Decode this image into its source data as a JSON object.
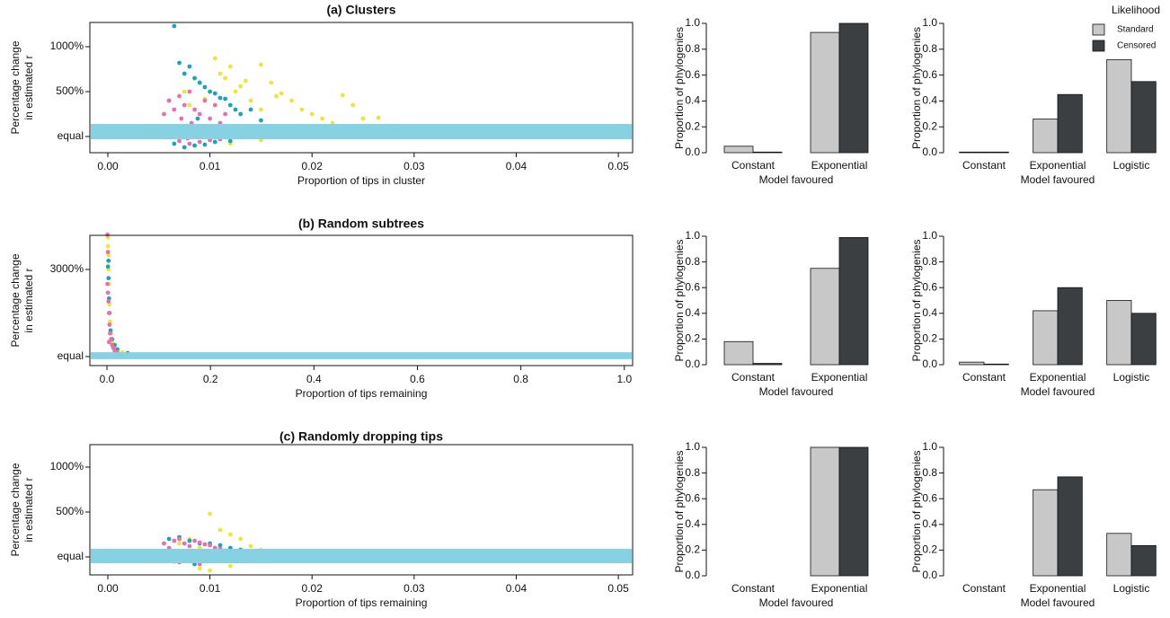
{
  "chart_data": [
    {
      "type": "scatter",
      "title": "(a) Clusters",
      "xlabel": "Proportion of tips in cluster",
      "ylabel": [
        "Percentage change",
        "in estimated r"
      ],
      "xlim": [
        -0.00176,
        0.0514
      ],
      "xticks": [
        {
          "value": 0,
          "label": "0.00"
        },
        0.01,
        0.02,
        0.03,
        0.04,
        0.05
      ],
      "ylim": [
        -180,
        1270
      ],
      "yticks": [
        {
          "value": 0,
          "label": "equal"
        },
        {
          "value": 500,
          "label": "500%"
        },
        {
          "value": 1000,
          "label": "1000%"
        }
      ],
      "band": {
        "range": [
          -30,
          140
        ],
        "color": "#87d2e2"
      },
      "series": [
        {
          "color": "#ede63a",
          "x": [
            0.0075,
            0.008,
            0.009,
            0.0095,
            0.0105,
            0.011,
            0.0115,
            0.012,
            0.0125,
            0.013,
            0.0135,
            0.014,
            0.015,
            0.015,
            0.016,
            0.0165,
            0.017,
            0.018,
            0.019,
            0.02,
            0.021,
            0.022,
            0.023,
            0.024,
            0.025,
            0.0265,
            0.0105,
            0.012,
            0.015,
            0.0135
          ],
          "values": [
            500,
            350,
            600,
            420,
            870,
            700,
            650,
            780,
            500,
            560,
            620,
            400,
            800,
            300,
            600,
            450,
            480,
            400,
            300,
            250,
            200,
            150,
            460,
            350,
            200,
            210,
            -60,
            -80,
            -40,
            100
          ]
        },
        {
          "color": "#1ba3b9",
          "x": [
            0.0065,
            0.007,
            0.0075,
            0.008,
            0.0085,
            0.009,
            0.0095,
            0.01,
            0.0105,
            0.011,
            0.0115,
            0.012,
            0.0125,
            0.013,
            0.014,
            0.015,
            0.0065,
            0.0075,
            0.0085,
            0.0095,
            0.0105,
            0.012,
            0.006,
            0.0088,
            0.0102
          ],
          "values": [
            1230,
            820,
            700,
            780,
            650,
            600,
            550,
            500,
            480,
            430,
            420,
            350,
            300,
            250,
            300,
            180,
            -80,
            -120,
            -100,
            -90,
            -60,
            -50,
            400,
            200,
            100
          ]
        },
        {
          "color": "#e86fae",
          "x": [
            0.0055,
            0.006,
            0.0065,
            0.007,
            0.0072,
            0.0075,
            0.008,
            0.0082,
            0.0085,
            0.009,
            0.0092,
            0.0095,
            0.01,
            0.0102,
            0.0105,
            0.011,
            0.0115,
            0.012,
            0.0125,
            0.007,
            0.008,
            0.009,
            0.01,
            0.011,
            0.0085,
            0.0095,
            0.0078,
            0.0068
          ],
          "values": [
            250,
            400,
            300,
            450,
            200,
            350,
            500,
            150,
            300,
            250,
            100,
            400,
            200,
            50,
            350,
            150,
            250,
            100,
            80,
            -50,
            -80,
            -60,
            -40,
            -30,
            0,
            20,
            -20,
            60
          ]
        }
      ]
    },
    {
      "type": "bar",
      "xlabel": "Model favoured",
      "ylabel": "Proportion of phylogenies",
      "categories": [
        "Constant",
        "Exponential"
      ],
      "ylim": [
        0,
        1
      ],
      "yticks": [
        {
          "value": 0,
          "label": "0.0"
        },
        0.2,
        0.4,
        0.6,
        0.8,
        {
          "value": 1,
          "label": "1.0"
        }
      ],
      "series": [
        {
          "color": "#c8c8c8",
          "values": [
            0.05,
            0.93
          ]
        },
        {
          "color": "#3c3f42",
          "values": [
            0.005,
            1.0
          ]
        }
      ]
    },
    {
      "type": "bar",
      "xlabel": "Model favoured",
      "ylabel": "Proportion of phylogenies",
      "categories": [
        "Constant",
        "Exponential",
        "Logistic"
      ],
      "ylim": [
        0,
        1
      ],
      "yticks": [
        {
          "value": 0,
          "label": "0.0"
        },
        0.2,
        0.4,
        0.6,
        0.8,
        {
          "value": 1,
          "label": "1.0"
        }
      ],
      "legend_title": "Likelihood",
      "legend": "top-right",
      "series": [
        {
          "name": "Standard",
          "color": "#c8c8c8",
          "values": [
            0.005,
            0.26,
            0.72
          ]
        },
        {
          "name": "Censored",
          "color": "#3c3f42",
          "values": [
            0.005,
            0.45,
            0.55
          ]
        }
      ]
    },
    {
      "type": "scatter",
      "title": "(b) Random subtrees",
      "xlabel": "Proportion of tips remaining",
      "ylabel": [
        "Percentage change",
        "in estimated r"
      ],
      "xlim": [
        -0.033,
        1.016
      ],
      "xticks": [
        {
          "value": 0,
          "label": "0.0"
        },
        0.2,
        0.4,
        0.6,
        0.8,
        {
          "value": 1,
          "label": "1.0"
        }
      ],
      "ylim": [
        -310,
        4175
      ],
      "yticks": [
        {
          "value": 0,
          "label": "equal"
        },
        {
          "value": 3000,
          "label": "3000%"
        }
      ],
      "band": {
        "range": [
          -90,
          150
        ],
        "color": "#87d2e2"
      },
      "series": [
        {
          "color": "#ede63a",
          "x": [
            0.002,
            0.003,
            0.004,
            0.005,
            0.006,
            0.008,
            0.01,
            0.015,
            0.02,
            0.03,
            0.05,
            0.08,
            0.12,
            0.2,
            0.26,
            0.35,
            0.42,
            0.5,
            0.61,
            0.7,
            0.75,
            0.94,
            1.0,
            0.003,
            0.002
          ],
          "values": [
            4100,
            3500,
            2500,
            1800,
            1200,
            800,
            500,
            300,
            200,
            150,
            80,
            40,
            20,
            50,
            30,
            10,
            20,
            30,
            10,
            0,
            20,
            10,
            0,
            3000,
            3800
          ]
        },
        {
          "color": "#1ba3b9",
          "x": [
            0.002,
            0.003,
            0.004,
            0.005,
            0.007,
            0.01,
            0.015,
            0.02,
            0.04,
            0.06,
            0.1,
            0.15,
            0.23,
            0.29,
            0.41,
            0.48,
            0.55,
            0.73,
            0.003
          ],
          "values": [
            3100,
            2700,
            2000,
            1500,
            900,
            600,
            400,
            250,
            120,
            60,
            30,
            10,
            20,
            10,
            20,
            0,
            30,
            10,
            3300
          ]
        },
        {
          "color": "#e86fae",
          "x": [
            0.001,
            0.002,
            0.002,
            0.003,
            0.004,
            0.005,
            0.006,
            0.008,
            0.01,
            0.012,
            0.015,
            0.02,
            0.03,
            0.04,
            0.06,
            0.09,
            0.12,
            0.16,
            0.2,
            0.3,
            0.001,
            0.004
          ],
          "values": [
            4200,
            3600,
            2200,
            1900,
            1500,
            1100,
            800,
            600,
            400,
            300,
            200,
            150,
            80,
            60,
            40,
            30,
            20,
            10,
            5,
            0,
            2500,
            500
          ]
        }
      ]
    },
    {
      "type": "bar",
      "xlabel": "Model favoured",
      "ylabel": "Proportion of phylogenies",
      "categories": [
        "Constant",
        "Exponential"
      ],
      "ylim": [
        0,
        1
      ],
      "yticks": [
        {
          "value": 0,
          "label": "0.0"
        },
        0.2,
        0.4,
        0.6,
        0.8,
        {
          "value": 1,
          "label": "1.0"
        }
      ],
      "series": [
        {
          "color": "#c8c8c8",
          "values": [
            0.18,
            0.75
          ]
        },
        {
          "color": "#3c3f42",
          "values": [
            0.01,
            0.99
          ]
        }
      ]
    },
    {
      "type": "bar",
      "xlabel": "Model favoured",
      "ylabel": "Proportion of phylogenies",
      "categories": [
        "Constant",
        "Exponential",
        "Logistic"
      ],
      "ylim": [
        0,
        1
      ],
      "yticks": [
        {
          "value": 0,
          "label": "0.0"
        },
        0.2,
        0.4,
        0.6,
        0.8,
        {
          "value": 1,
          "label": "1.0"
        }
      ],
      "series": [
        {
          "color": "#c8c8c8",
          "values": [
            0.02,
            0.42,
            0.5
          ]
        },
        {
          "color": "#3c3f42",
          "values": [
            0.005,
            0.6,
            0.4
          ]
        }
      ]
    },
    {
      "type": "scatter",
      "title": "(c) Randomly dropping tips",
      "xlabel": "Proportion of tips remaining",
      "ylabel": [
        "Percentage change",
        "in estimated r"
      ],
      "xlim": [
        -0.00176,
        0.0514
      ],
      "xticks": [
        {
          "value": 0,
          "label": "0.00"
        },
        0.01,
        0.02,
        0.03,
        0.04,
        0.05
      ],
      "ylim": [
        -200,
        1250
      ],
      "yticks": [
        {
          "value": 0,
          "label": "equal"
        },
        {
          "value": 500,
          "label": "500%"
        },
        {
          "value": 1000,
          "label": "1000%"
        }
      ],
      "band": {
        "range": [
          -70,
          90
        ],
        "color": "#87d2e2"
      },
      "series": [
        {
          "color": "#ede63a",
          "x": [
            0.007,
            0.008,
            0.009,
            0.01,
            0.011,
            0.012,
            0.013,
            0.014,
            0.015,
            0.016,
            0.017,
            0.018,
            0.019,
            0.02,
            0.021,
            0.022,
            0.024,
            0.0265,
            0.01,
            0.012,
            0.015,
            0.009
          ],
          "values": [
            150,
            200,
            100,
            480,
            300,
            250,
            200,
            120,
            80,
            60,
            40,
            20,
            10,
            0,
            -10,
            -20,
            -20,
            -20,
            -150,
            -100,
            -50,
            -130
          ]
        },
        {
          "color": "#1ba3b9",
          "x": [
            0.006,
            0.007,
            0.008,
            0.009,
            0.01,
            0.011,
            0.012,
            0.013,
            0.014,
            0.015,
            0.016,
            0.0065,
            0.0085
          ],
          "values": [
            200,
            220,
            180,
            150,
            150,
            130,
            100,
            80,
            60,
            50,
            40,
            -50,
            -80
          ]
        },
        {
          "color": "#e86fae",
          "x": [
            0.0055,
            0.006,
            0.0065,
            0.007,
            0.0075,
            0.008,
            0.0085,
            0.009,
            0.0095,
            0.01,
            0.0105,
            0.011,
            0.0115,
            0.012,
            0.0125,
            0.007,
            0.009,
            0.011
          ],
          "values": [
            150,
            100,
            180,
            200,
            150,
            120,
            180,
            160,
            140,
            130,
            100,
            90,
            70,
            50,
            40,
            -60,
            -80,
            -40
          ]
        }
      ]
    },
    {
      "type": "bar",
      "xlabel": "Model favoured",
      "ylabel": "Proportion of phylogenies",
      "categories": [
        "Constant",
        "Exponential"
      ],
      "ylim": [
        0,
        1
      ],
      "yticks": [
        {
          "value": 0,
          "label": "0.0"
        },
        0.2,
        0.4,
        0.6,
        0.8,
        {
          "value": 1,
          "label": "1.0"
        }
      ],
      "series": [
        {
          "color": "#c8c8c8",
          "values": [
            0,
            1.0
          ]
        },
        {
          "color": "#3c3f42",
          "values": [
            0,
            1.0
          ]
        }
      ]
    },
    {
      "type": "bar",
      "xlabel": "Model favoured",
      "ylabel": "Proportion of phylogenies",
      "categories": [
        "Constant",
        "Exponential",
        "Logistic"
      ],
      "ylim": [
        0,
        1
      ],
      "yticks": [
        {
          "value": 0,
          "label": "0.0"
        },
        0.2,
        0.4,
        0.6,
        0.8,
        {
          "value": 1,
          "label": "1.0"
        }
      ],
      "series": [
        {
          "color": "#c8c8c8",
          "values": [
            0,
            0.67,
            0.33
          ]
        },
        {
          "color": "#3c3f42",
          "values": [
            0,
            0.77,
            0.235
          ]
        }
      ]
    }
  ]
}
